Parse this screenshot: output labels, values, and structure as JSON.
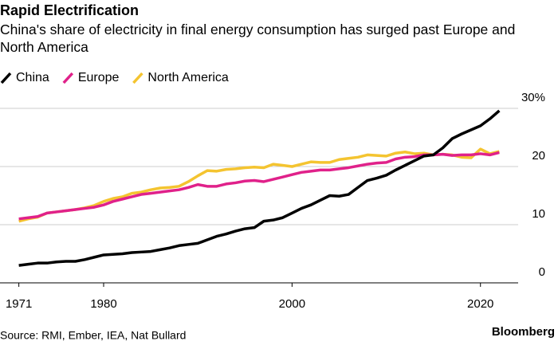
{
  "chart_data": {
    "type": "line",
    "title": "Rapid Electrification",
    "subtitle": "China's share of electricity in final energy consumption has surged past Europe and North America",
    "source": "Source: RMI, Ember, IEA, Nat Bullard",
    "credit": "Bloomberg",
    "x": [
      1971,
      1972,
      1973,
      1974,
      1975,
      1976,
      1977,
      1978,
      1979,
      1980,
      1981,
      1982,
      1983,
      1984,
      1985,
      1986,
      1987,
      1988,
      1989,
      1990,
      1991,
      1992,
      1993,
      1994,
      1995,
      1996,
      1997,
      1998,
      1999,
      2000,
      2001,
      2002,
      2003,
      2004,
      2005,
      2006,
      2007,
      2008,
      2009,
      2010,
      2011,
      2012,
      2013,
      2014,
      2015,
      2016,
      2017,
      2018,
      2019,
      2020,
      2021,
      2022
    ],
    "series": [
      {
        "name": "China",
        "color": "#000000",
        "values": [
          3.0,
          3.2,
          3.4,
          3.4,
          3.6,
          3.7,
          3.7,
          4.0,
          4.4,
          4.8,
          4.9,
          5.0,
          5.2,
          5.3,
          5.4,
          5.7,
          6.0,
          6.4,
          6.6,
          6.8,
          7.4,
          8.0,
          8.4,
          8.9,
          9.3,
          9.5,
          10.6,
          10.8,
          11.2,
          12.0,
          12.8,
          13.4,
          14.2,
          15.0,
          14.9,
          15.2,
          16.4,
          17.6,
          18.0,
          18.5,
          19.4,
          20.2,
          21.0,
          21.8,
          22.0,
          23.2,
          24.8,
          25.6,
          26.3,
          27.0,
          28.2,
          29.6
        ]
      },
      {
        "name": "Europe",
        "color": "#e0218a",
        "values": [
          11.0,
          11.2,
          11.4,
          12.0,
          12.2,
          12.4,
          12.6,
          12.8,
          13.0,
          13.4,
          14.0,
          14.4,
          14.8,
          15.2,
          15.4,
          15.6,
          15.8,
          16.0,
          16.4,
          16.9,
          16.6,
          16.6,
          17.0,
          17.2,
          17.5,
          17.6,
          17.4,
          17.8,
          18.2,
          18.6,
          19.0,
          19.2,
          19.4,
          19.4,
          19.6,
          19.8,
          20.1,
          20.4,
          20.6,
          20.7,
          21.3,
          21.6,
          21.7,
          22.0,
          22.0,
          22.1,
          21.9,
          22.0,
          22.0,
          22.2,
          22.0,
          22.4
        ]
      },
      {
        "name": "North America",
        "color": "#f4c430",
        "values": [
          10.6,
          11.0,
          11.3,
          12.0,
          12.2,
          12.4,
          12.6,
          12.9,
          13.3,
          14.0,
          14.5,
          14.8,
          15.4,
          15.6,
          16.0,
          16.3,
          16.4,
          16.6,
          17.4,
          18.4,
          19.3,
          19.2,
          19.5,
          19.6,
          19.8,
          19.9,
          19.8,
          20.4,
          20.2,
          20.0,
          20.4,
          20.8,
          20.7,
          20.7,
          21.2,
          21.4,
          21.6,
          22.0,
          21.9,
          21.8,
          22.3,
          22.5,
          22.2,
          22.3,
          22.0,
          22.1,
          22.0,
          21.6,
          21.5,
          23.0,
          22.2,
          22.6
        ]
      }
    ],
    "xlim": [
      1969,
      2024
    ],
    "xticks": [
      1971,
      1980,
      2000,
      2020
    ],
    "ylim": [
      0,
      30
    ],
    "yticks": [
      0,
      10,
      20,
      {
        "value": 30,
        "label": "30%"
      }
    ],
    "grid": true
  }
}
